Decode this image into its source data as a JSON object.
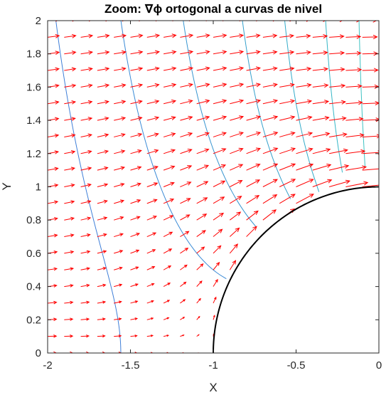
{
  "chart_data": {
    "type": "quiver",
    "title": "Zoom: ∇ϕ  ortogonal  a  curvas  de  nivel",
    "xlabel": "X",
    "ylabel": "Y",
    "xlim": [
      -2,
      0
    ],
    "ylim": [
      0,
      2
    ],
    "x_ticks": [
      "-2",
      "-1.5",
      "-1",
      "-0.5",
      "0"
    ],
    "y_ticks": [
      "0",
      "0.2",
      "0.4",
      "0.6",
      "0.8",
      "1",
      "1.2",
      "1.4",
      "1.6",
      "1.8",
      "2"
    ],
    "grid": false,
    "flow": {
      "U": 1,
      "cylinder_radius": 1,
      "center": [
        0,
        0
      ]
    },
    "boundary": {
      "shape": "quarter-circle",
      "radius": 1,
      "theta_range_deg": [
        90,
        180
      ],
      "color": "#000000"
    },
    "series": [
      {
        "kind": "contour-equipotential",
        "levels": [
          -2.2,
          -1.8,
          -1.4,
          -1.0,
          -0.7,
          -0.4,
          -0.15
        ],
        "colors": [
          "#3f7fd8",
          "#3a8ad6",
          "#3795d0",
          "#34a0cc",
          "#33abc9",
          "#34b6c6",
          "#3fc2c2"
        ]
      },
      {
        "kind": "gradient-arrows",
        "color": "#ff0000",
        "grid_step": 0.1
      }
    ]
  }
}
